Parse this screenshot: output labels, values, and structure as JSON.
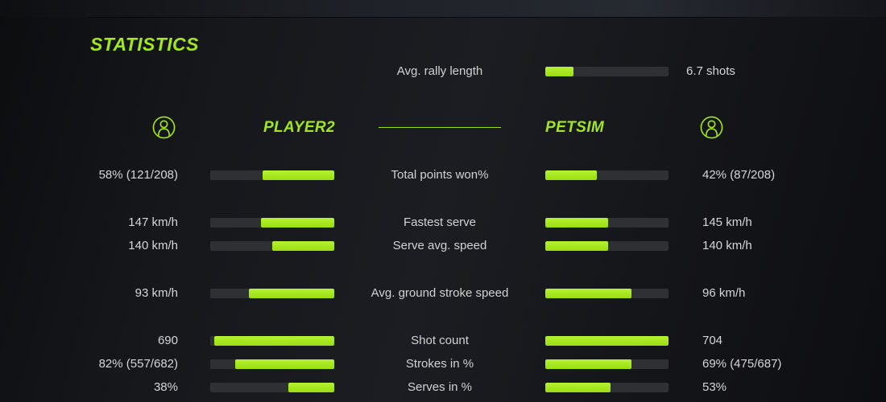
{
  "title": "STATISTICS",
  "colors": {
    "accent": "#a2e71b",
    "accent_fill_top": "#b4f232",
    "accent_fill_bottom": "#9bdd10",
    "bar_track": "#2e3034",
    "text": "#d6d6d6"
  },
  "rally": {
    "label": "Avg. rally length",
    "value": "6.7 shots",
    "fill_pct": 23
  },
  "players": {
    "left": {
      "name": "PLAYER2",
      "icon": "player-avatar-icon"
    },
    "right": {
      "name": "PETSIM",
      "icon": "player-avatar-icon"
    }
  },
  "stats": [
    {
      "label": "Total points won%",
      "left_value": "58% (121/208)",
      "right_value": "42% (87/208)",
      "left_fill_pct": 58,
      "right_fill_pct": 42
    },
    {
      "label": "Fastest serve",
      "left_value": "147 km/h",
      "right_value": "145 km/h",
      "left_fill_pct": 59,
      "right_fill_pct": 51
    },
    {
      "label": "Serve avg. speed",
      "left_value": "140 km/h",
      "right_value": "140 km/h",
      "left_fill_pct": 50,
      "right_fill_pct": 51
    },
    {
      "label": "Avg. ground stroke speed",
      "left_value": "93 km/h",
      "right_value": "96 km/h",
      "left_fill_pct": 69,
      "right_fill_pct": 70
    },
    {
      "label": "Shot count",
      "left_value": "690",
      "right_value": "704",
      "left_fill_pct": 97,
      "right_fill_pct": 100
    },
    {
      "label": "Strokes in %",
      "left_value": "82% (557/682)",
      "right_value": "69% (475/687)",
      "left_fill_pct": 80,
      "right_fill_pct": 70
    },
    {
      "label": "Serves in %",
      "left_value": "38%",
      "right_value": "53%",
      "left_fill_pct": 37,
      "right_fill_pct": 53
    }
  ]
}
